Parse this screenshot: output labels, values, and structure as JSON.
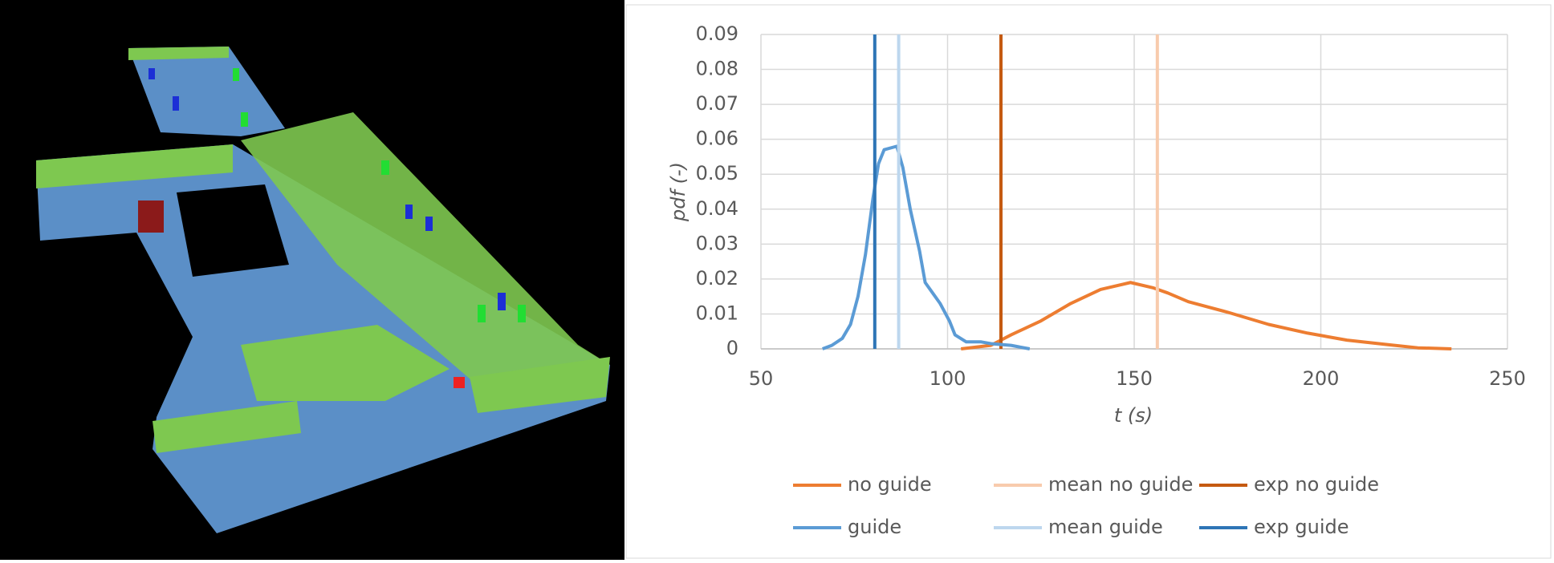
{
  "chart_data": {
    "type": "line",
    "xlabel": "t (s)",
    "ylabel": "pdf (-)",
    "xlim": [
      50,
      250
    ],
    "xticks": [
      50,
      100,
      150,
      200,
      250
    ],
    "ylim": [
      0,
      0.09
    ],
    "yticks": [
      0,
      0.01,
      0.02,
      0.03,
      0.04,
      0.05,
      0.06,
      0.07,
      0.08,
      0.09
    ],
    "grid": true,
    "legend": "bottom",
    "series": [
      {
        "name": "no guide",
        "color": "#ed7d31",
        "x": [
          103.6,
          111.6,
          117,
          125,
          133,
          141,
          149,
          155,
          159,
          164.5,
          175,
          186,
          196.5,
          207,
          218,
          226,
          235
        ],
        "values": [
          0,
          0.001,
          0.004,
          0.008,
          0.013,
          0.017,
          0.019,
          0.0175,
          0.016,
          0.0135,
          0.0105,
          0.007,
          0.0045,
          0.0025,
          0.0012,
          0.0003,
          0
        ]
      },
      {
        "name": "mean no guide",
        "color": "#f8cbad",
        "x": [
          156.2,
          156.2
        ],
        "values": [
          0,
          0.09
        ]
      },
      {
        "name": "exp no guide",
        "color": "#c55a11",
        "x": [
          114.3,
          114.3
        ],
        "values": [
          0,
          0.09
        ]
      },
      {
        "name": "guide",
        "color": "#5b9bd5",
        "x": [
          66.5,
          69,
          71.8,
          74,
          76,
          78,
          80,
          81.5,
          83,
          86.4,
          88,
          90,
          92.5,
          94,
          96,
          98,
          100.5,
          102,
          105,
          109,
          111.6,
          117,
          122
        ],
        "values": [
          0,
          0.001,
          0.003,
          0.007,
          0.015,
          0.027,
          0.043,
          0.053,
          0.057,
          0.058,
          0.052,
          0.04,
          0.028,
          0.019,
          0.016,
          0.013,
          0.008,
          0.004,
          0.002,
          0.002,
          0.0015,
          0.001,
          0
        ]
      },
      {
        "name": "mean guide",
        "color": "#bdd7ee",
        "x": [
          86.9,
          86.9
        ],
        "values": [
          0,
          0.09
        ]
      },
      {
        "name": "exp guide",
        "color": "#2e75b6",
        "x": [
          80.5,
          80.5
        ],
        "values": [
          0,
          0.09
        ]
      }
    ]
  }
}
